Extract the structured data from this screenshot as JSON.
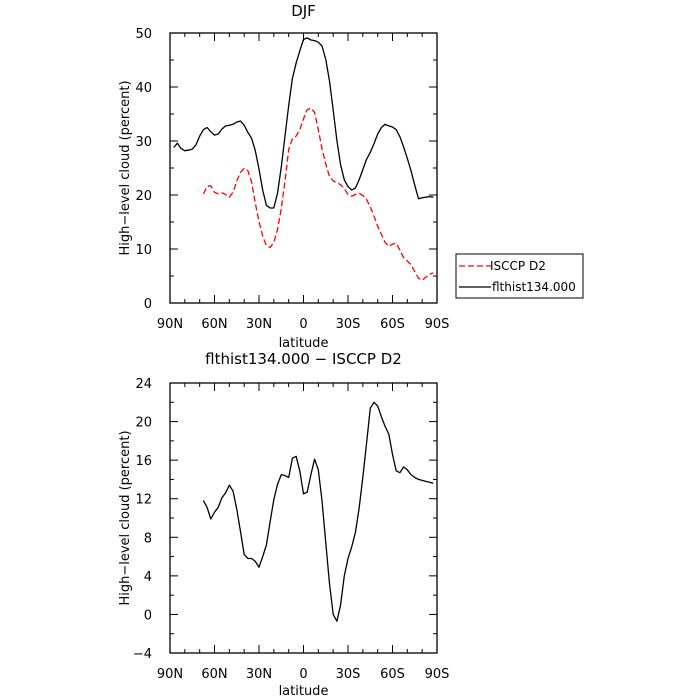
{
  "chart_data": [
    {
      "type": "line",
      "title": "DJF",
      "xlabel": "latitude",
      "ylabel": "High−level cloud (percent)",
      "xlim": [
        90,
        -90
      ],
      "ylim": [
        0,
        50
      ],
      "x_ticks": [
        90,
        60,
        30,
        0,
        -30,
        -60,
        -90
      ],
      "x_tick_labels": [
        "90N",
        "60N",
        "30N",
        "0",
        "30S",
        "60S",
        "90S"
      ],
      "y_ticks": [
        0,
        10,
        20,
        30,
        40,
        50
      ],
      "y_tick_labels": [
        "0",
        "10",
        "20",
        "30",
        "40",
        "50"
      ],
      "legend_position": "outside-right",
      "series": [
        {
          "name": "ISCCP D2",
          "color": "#ff0000",
          "dash": "dashed",
          "x": [
            67.5,
            65,
            62.5,
            60,
            57.5,
            55,
            52.5,
            50,
            47.5,
            45,
            42.5,
            40,
            37.5,
            35,
            32.5,
            30,
            27.5,
            25,
            22.5,
            20,
            17.5,
            15,
            12.5,
            10,
            7.5,
            5,
            2.5,
            0,
            -2.5,
            -5,
            -7.5,
            -10,
            -12.5,
            -15,
            -17.5,
            -20,
            -22.5,
            -25,
            -27.5,
            -30,
            -32.5,
            -35,
            -37.5,
            -40,
            -42.5,
            -45,
            -47.5,
            -50,
            -52.5,
            -55,
            -57.5,
            -60,
            -62.5,
            -65,
            -67.5,
            -70,
            -72.5,
            -75,
            -77.5,
            -80,
            -82.5,
            -85,
            -87.5
          ],
          "y": [
            20.2,
            21.6,
            21.7,
            20.5,
            20.2,
            20.4,
            20.1,
            19.6,
            20.5,
            22.6,
            24.2,
            24.9,
            24.5,
            22.4,
            18.5,
            15.1,
            12.4,
            10.6,
            10.3,
            11.2,
            13.6,
            17.5,
            22.6,
            28.4,
            30.4,
            30.9,
            32.1,
            34.1,
            35.8,
            36.1,
            35.3,
            32.1,
            28.6,
            25.7,
            23.4,
            22.6,
            22.3,
            21.9,
            21.2,
            20.1,
            19.8,
            20.1,
            20.3,
            19.9,
            19.2,
            17.8,
            16.1,
            14.2,
            12.7,
            11.2,
            10.5,
            10.9,
            11.1,
            9.8,
            8.4,
            7.8,
            7.1,
            5.8,
            4.6,
            4.2,
            4.8,
            5.3,
            5.6
          ]
        },
        {
          "name": "flthist134.000",
          "color": "#000000",
          "dash": "solid",
          "x": [
            87.5,
            85,
            82.5,
            80,
            77.5,
            75,
            72.5,
            70,
            67.5,
            65,
            62.5,
            60,
            57.5,
            55,
            52.5,
            50,
            47.5,
            45,
            42.5,
            40,
            37.5,
            35,
            32.5,
            30,
            27.5,
            25,
            22.5,
            20,
            17.5,
            15,
            12.5,
            10,
            7.5,
            5,
            2.5,
            0,
            -2.5,
            -5,
            -7.5,
            -10,
            -12.5,
            -15,
            -17.5,
            -20,
            -22.5,
            -25,
            -27.5,
            -30,
            -32.5,
            -35,
            -37.5,
            -40,
            -42.5,
            -45,
            -47.5,
            -50,
            -52.5,
            -55,
            -57.5,
            -60,
            -62.5,
            -65,
            -67.5,
            -70,
            -72.5,
            -75,
            -77.5,
            -80,
            -82.5,
            -85,
            -87.5
          ],
          "y": [
            28.8,
            29.6,
            28.6,
            28.2,
            28.3,
            28.5,
            29.3,
            30.9,
            32.1,
            32.5,
            31.7,
            31.1,
            31.3,
            32.2,
            32.8,
            32.9,
            33.1,
            33.5,
            33.7,
            32.9,
            31.6,
            30.5,
            28.2,
            24.8,
            20.9,
            18.1,
            17.6,
            17.6,
            20.3,
            25.2,
            30.9,
            36.6,
            41.6,
            44.4,
            46.7,
            48.8,
            49.1,
            48.7,
            48.6,
            48.3,
            47.6,
            45.1,
            41.1,
            35.7,
            30.1,
            25.6,
            22.8,
            21.6,
            20.9,
            21.3,
            22.8,
            24.7,
            26.6,
            27.9,
            29.5,
            31.3,
            32.5,
            33.1,
            32.8,
            32.6,
            32.1,
            30.8,
            28.9,
            26.8,
            24.5,
            21.8,
            19.3,
            19.5,
            19.6,
            19.7,
            19.6
          ]
        }
      ]
    },
    {
      "type": "line",
      "title": "flthist134.000 − ISCCP D2",
      "xlabel": "latitude",
      "ylabel": "High−level cloud (percent)",
      "xlim": [
        90,
        -90
      ],
      "ylim": [
        -4,
        24
      ],
      "x_ticks": [
        90,
        60,
        30,
        0,
        -30,
        -60,
        -90
      ],
      "x_tick_labels": [
        "90N",
        "60N",
        "30N",
        "0",
        "30S",
        "60S",
        "90S"
      ],
      "y_ticks": [
        -4,
        0,
        4,
        8,
        12,
        16,
        20,
        24
      ],
      "y_tick_labels": [
        "−4",
        "0",
        "4",
        "8",
        "12",
        "16",
        "20",
        "24"
      ],
      "series": [
        {
          "color": "#000000",
          "dash": "solid",
          "x": [
            67.5,
            65,
            62.5,
            60,
            57.5,
            55,
            52.5,
            50,
            47.5,
            45,
            42.5,
            40,
            37.5,
            35,
            32.5,
            30,
            27.5,
            25,
            22.5,
            20,
            17.5,
            15,
            12.5,
            10,
            7.5,
            5,
            2.5,
            0,
            -2.5,
            -5,
            -7.5,
            -10,
            -12.5,
            -15,
            -17.5,
            -20,
            -22.5,
            -25,
            -27.5,
            -30,
            -32.5,
            -35,
            -37.5,
            -40,
            -42.5,
            -45,
            -47.5,
            -50,
            -52.5,
            -55,
            -57.5,
            -60,
            -62.5,
            -65,
            -67.5,
            -70,
            -72.5,
            -75,
            -77.5,
            -80,
            -82.5,
            -85,
            -87.5
          ],
          "y": [
            11.8,
            11.1,
            9.9,
            10.6,
            11.1,
            12.1,
            12.6,
            13.4,
            12.8,
            10.9,
            8.6,
            6.2,
            5.8,
            5.8,
            5.5,
            4.9,
            6.0,
            7.2,
            9.6,
            11.9,
            13.5,
            14.5,
            14.4,
            14.2,
            16.2,
            16.4,
            14.9,
            12.5,
            12.7,
            14.5,
            16.1,
            15.0,
            11.8,
            7.4,
            3.2,
            0.0,
            -0.7,
            1.0,
            4.0,
            5.8,
            7.0,
            8.5,
            11.0,
            14.2,
            17.7,
            21.4,
            22.0,
            21.6,
            20.5,
            19.5,
            18.7,
            16.6,
            14.9,
            14.7,
            15.3,
            15.0,
            14.5,
            14.2,
            14.0,
            13.9,
            13.8,
            13.7,
            13.6
          ]
        }
      ]
    }
  ]
}
